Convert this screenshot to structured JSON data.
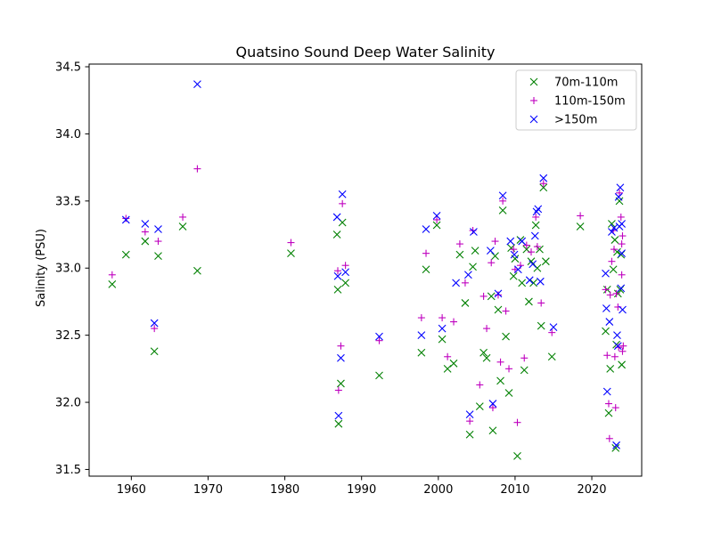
{
  "chart_data": {
    "type": "scatter",
    "title": "Quatsino Sound Deep Water Salinity",
    "xlabel": "",
    "ylabel": "Salinity (PSU)",
    "xlim": [
      1954.5,
      2026.5
    ],
    "ylim": [
      31.45,
      34.52
    ],
    "xticks": [
      1960,
      1970,
      1980,
      1990,
      2000,
      2010,
      2020
    ],
    "yticks": [
      31.5,
      32.0,
      32.5,
      33.0,
      33.5,
      34.0,
      34.5
    ],
    "ytick_labels": [
      "31.5",
      "32.0",
      "32.5",
      "33.0",
      "33.5",
      "34.0",
      "34.5"
    ],
    "grid": false,
    "legend_position": "top-right",
    "series": [
      {
        "name": "70m-110m",
        "marker": "x",
        "color": "#008000",
        "points": [
          [
            1957.5,
            32.88
          ],
          [
            1959.3,
            33.1
          ],
          [
            1961.8,
            33.2
          ],
          [
            1963.0,
            32.38
          ],
          [
            1963.5,
            33.09
          ],
          [
            1966.7,
            33.31
          ],
          [
            1968.6,
            32.98
          ],
          [
            1980.8,
            33.11
          ],
          [
            1986.8,
            33.25
          ],
          [
            1986.9,
            32.84
          ],
          [
            1987.0,
            31.84
          ],
          [
            1987.3,
            32.14
          ],
          [
            1987.5,
            33.34
          ],
          [
            1987.9,
            32.89
          ],
          [
            1992.3,
            32.2
          ],
          [
            1997.8,
            32.37
          ],
          [
            1998.4,
            32.99
          ],
          [
            1999.8,
            33.32
          ],
          [
            2000.5,
            32.47
          ],
          [
            2001.2,
            32.25
          ],
          [
            2002.0,
            32.29
          ],
          [
            2002.8,
            33.1
          ],
          [
            2003.5,
            32.74
          ],
          [
            2004.1,
            31.76
          ],
          [
            2004.5,
            33.01
          ],
          [
            2004.8,
            33.13
          ],
          [
            2005.4,
            31.97
          ],
          [
            2005.9,
            32.37
          ],
          [
            2006.3,
            32.33
          ],
          [
            2006.9,
            32.79
          ],
          [
            2007.1,
            31.79
          ],
          [
            2007.4,
            33.09
          ],
          [
            2007.8,
            32.69
          ],
          [
            2008.1,
            32.16
          ],
          [
            2008.4,
            33.43
          ],
          [
            2008.8,
            32.49
          ],
          [
            2009.2,
            32.07
          ],
          [
            2009.5,
            33.15
          ],
          [
            2009.8,
            32.94
          ],
          [
            2010.0,
            33.07
          ],
          [
            2010.3,
            31.6
          ],
          [
            2010.7,
            33.21
          ],
          [
            2010.9,
            32.89
          ],
          [
            2011.2,
            32.24
          ],
          [
            2011.5,
            33.14
          ],
          [
            2011.8,
            32.75
          ],
          [
            2012.1,
            33.05
          ],
          [
            2012.4,
            32.89
          ],
          [
            2012.7,
            33.32
          ],
          [
            2012.9,
            33.0
          ],
          [
            2013.2,
            33.14
          ],
          [
            2013.4,
            32.57
          ],
          [
            2013.7,
            33.6
          ],
          [
            2014.0,
            33.05
          ],
          [
            2014.8,
            32.34
          ],
          [
            2018.5,
            33.31
          ],
          [
            2021.8,
            32.53
          ],
          [
            2022.0,
            32.84
          ],
          [
            2022.2,
            31.92
          ],
          [
            2022.4,
            32.25
          ],
          [
            2022.6,
            33.33
          ],
          [
            2022.8,
            32.99
          ],
          [
            2023.0,
            33.21
          ],
          [
            2023.1,
            31.66
          ],
          [
            2023.2,
            32.43
          ],
          [
            2023.3,
            33.12
          ],
          [
            2023.4,
            32.81
          ],
          [
            2023.6,
            33.5
          ],
          [
            2023.7,
            32.84
          ],
          [
            2023.8,
            33.1
          ],
          [
            2023.9,
            32.28
          ]
        ]
      },
      {
        "name": "110m-150m",
        "marker": "+",
        "color": "#bf00bf",
        "points": [
          [
            1957.5,
            32.95
          ],
          [
            1959.3,
            33.37
          ],
          [
            1961.8,
            33.27
          ],
          [
            1963.0,
            32.55
          ],
          [
            1963.5,
            33.2
          ],
          [
            1966.7,
            33.38
          ],
          [
            1968.6,
            33.74
          ],
          [
            1980.8,
            33.19
          ],
          [
            1986.9,
            32.98
          ],
          [
            1987.0,
            32.09
          ],
          [
            1987.3,
            32.42
          ],
          [
            1987.5,
            33.48
          ],
          [
            1987.9,
            33.02
          ],
          [
            1992.3,
            32.46
          ],
          [
            1997.8,
            32.63
          ],
          [
            1998.4,
            33.11
          ],
          [
            1999.8,
            33.36
          ],
          [
            2000.5,
            32.63
          ],
          [
            2001.2,
            32.34
          ],
          [
            2002.0,
            32.6
          ],
          [
            2002.8,
            33.18
          ],
          [
            2003.5,
            32.89
          ],
          [
            2004.1,
            31.86
          ],
          [
            2004.5,
            33.28
          ],
          [
            2005.4,
            32.13
          ],
          [
            2005.9,
            32.79
          ],
          [
            2006.3,
            32.55
          ],
          [
            2006.9,
            33.04
          ],
          [
            2007.1,
            31.96
          ],
          [
            2007.4,
            33.2
          ],
          [
            2007.8,
            32.8
          ],
          [
            2008.1,
            32.3
          ],
          [
            2008.4,
            33.5
          ],
          [
            2008.8,
            32.68
          ],
          [
            2009.2,
            32.25
          ],
          [
            2009.8,
            33.14
          ],
          [
            2010.0,
            32.99
          ],
          [
            2010.3,
            31.85
          ],
          [
            2010.7,
            33.02
          ],
          [
            2011.2,
            32.33
          ],
          [
            2011.5,
            33.17
          ],
          [
            2012.1,
            33.12
          ],
          [
            2012.7,
            33.38
          ],
          [
            2012.9,
            33.16
          ],
          [
            2013.4,
            32.74
          ],
          [
            2013.7,
            33.63
          ],
          [
            2014.8,
            32.52
          ],
          [
            2018.5,
            33.39
          ],
          [
            2021.8,
            32.84
          ],
          [
            2022.0,
            32.35
          ],
          [
            2022.2,
            31.99
          ],
          [
            2022.4,
            32.8
          ],
          [
            2022.6,
            33.05
          ],
          [
            2022.8,
            33.28
          ],
          [
            2023.0,
            32.34
          ],
          [
            2023.1,
            31.96
          ],
          [
            2023.2,
            32.81
          ],
          [
            2023.4,
            32.71
          ],
          [
            2023.6,
            33.56
          ],
          [
            2023.8,
            33.38
          ],
          [
            2023.9,
            32.95
          ],
          [
            2024.0,
            33.24
          ],
          [
            2024.1,
            32.42
          ],
          [
            2023.9,
            33.18
          ],
          [
            2022.3,
            31.73
          ],
          [
            2022.9,
            33.14
          ],
          [
            2023.5,
            32.41
          ],
          [
            2024.0,
            32.38
          ]
        ]
      },
      {
        "name": ">150m",
        "marker": "x",
        "color": "#0000ff",
        "points": [
          [
            1959.3,
            33.36
          ],
          [
            1961.8,
            33.33
          ],
          [
            1963.0,
            32.59
          ],
          [
            1963.5,
            33.29
          ],
          [
            1968.6,
            34.37
          ],
          [
            1986.8,
            33.38
          ],
          [
            1986.9,
            32.94
          ],
          [
            1987.0,
            31.9
          ],
          [
            1987.3,
            32.33
          ],
          [
            1987.5,
            33.55
          ],
          [
            1987.9,
            32.97
          ],
          [
            1992.3,
            32.49
          ],
          [
            1997.8,
            32.5
          ],
          [
            1998.4,
            33.29
          ],
          [
            1999.8,
            33.39
          ],
          [
            2000.5,
            32.55
          ],
          [
            2002.3,
            32.89
          ],
          [
            2003.9,
            32.95
          ],
          [
            2004.1,
            31.91
          ],
          [
            2004.6,
            33.27
          ],
          [
            2006.8,
            33.13
          ],
          [
            2007.1,
            31.99
          ],
          [
            2007.8,
            32.81
          ],
          [
            2008.4,
            33.54
          ],
          [
            2009.4,
            33.2
          ],
          [
            2009.9,
            33.1
          ],
          [
            2010.4,
            32.99
          ],
          [
            2010.9,
            33.2
          ],
          [
            2011.9,
            32.91
          ],
          [
            2012.3,
            33.03
          ],
          [
            2012.6,
            33.24
          ],
          [
            2012.8,
            33.42
          ],
          [
            2013.0,
            33.44
          ],
          [
            2013.3,
            32.9
          ],
          [
            2013.7,
            33.67
          ],
          [
            2015.0,
            32.56
          ],
          [
            2021.8,
            32.96
          ],
          [
            2021.9,
            32.7
          ],
          [
            2022.0,
            32.08
          ],
          [
            2022.3,
            32.6
          ],
          [
            2022.6,
            33.27
          ],
          [
            2022.9,
            33.3
          ],
          [
            2023.2,
            31.68
          ],
          [
            2023.3,
            32.5
          ],
          [
            2023.4,
            32.42
          ],
          [
            2023.5,
            33.53
          ],
          [
            2023.6,
            33.31
          ],
          [
            2023.7,
            33.6
          ],
          [
            2023.8,
            32.85
          ],
          [
            2023.9,
            33.11
          ],
          [
            2024.0,
            32.69
          ],
          [
            2023.9,
            33.33
          ]
        ]
      }
    ]
  }
}
